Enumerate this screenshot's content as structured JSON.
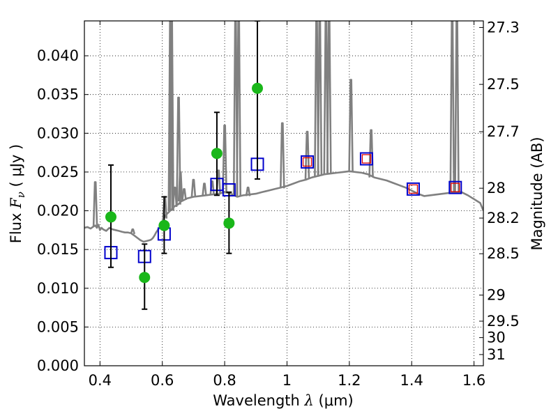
{
  "chart_data": {
    "type": "scatter",
    "xlabel": "Wavelength",
    "xlabel_symbol": "λ",
    "xlabel_unit": "(μm)",
    "ylabel": "Flux",
    "ylabel_symbol": "F",
    "ylabel_subscript": "ν",
    "ylabel_unit": "( μJy )",
    "y2label": "Magnitude (AB)",
    "xlim": [
      0.35,
      1.63
    ],
    "ylim": [
      0.0,
      0.0445
    ],
    "grid": true,
    "x_ticks": [
      0.4,
      0.6,
      0.8,
      1.0,
      1.2,
      1.4,
      1.6
    ],
    "x_tick_labels": [
      "0.4",
      "0.6",
      "0.8",
      "1",
      "1.2",
      "1.4",
      "1.6"
    ],
    "y_ticks": [
      0.0,
      0.005,
      0.01,
      0.015,
      0.02,
      0.025,
      0.03,
      0.035,
      0.04
    ],
    "y_tick_labels": [
      "0.000",
      "0.005",
      "0.010",
      "0.015",
      "0.020",
      "0.025",
      "0.030",
      "0.035",
      "0.040"
    ],
    "y2_ticks": [
      27.3,
      27.5,
      27.7,
      28,
      28.2,
      28.5,
      29,
      29.5,
      30,
      31
    ],
    "y2_tick_labels": [
      "27.3",
      "27.5",
      "27.7",
      "28",
      "28.2",
      "28.5",
      "29",
      "29.5",
      "30",
      "31"
    ],
    "colors": {
      "model": "#808080",
      "observed": "#1ab71a",
      "model_phot": "#0000cc",
      "model_phot_inner": "#dd0000",
      "errorbar": "#000000",
      "grid": "#000000"
    },
    "series": [
      {
        "name": "model spectrum",
        "kind": "line",
        "x": [
          0.35,
          0.36,
          0.37,
          0.38,
          0.385,
          0.39,
          0.395,
          0.4,
          0.405,
          0.41,
          0.42,
          0.43,
          0.44,
          0.45,
          0.46,
          0.47,
          0.48,
          0.49,
          0.5,
          0.51,
          0.52,
          0.53,
          0.54,
          0.55,
          0.56,
          0.565,
          0.57,
          0.575,
          0.58,
          0.59,
          0.6,
          0.605,
          0.61,
          0.62,
          0.63,
          0.64,
          0.65,
          0.655,
          0.66,
          0.67,
          0.68,
          0.7,
          0.72,
          0.74,
          0.76,
          0.78,
          0.8,
          0.82,
          0.84,
          0.86,
          0.88,
          0.9,
          0.92,
          0.94,
          0.96,
          0.98,
          1.0,
          1.02,
          1.04,
          1.06,
          1.08,
          1.1,
          1.12,
          1.14,
          1.16,
          1.18,
          1.2,
          1.22,
          1.24,
          1.26,
          1.28,
          1.3,
          1.32,
          1.34,
          1.36,
          1.38,
          1.4,
          1.42,
          1.44,
          1.46,
          1.48,
          1.5,
          1.52,
          1.54,
          1.56,
          1.58,
          1.6,
          1.62,
          1.63
        ],
        "y": [
          0.0178,
          0.0179,
          0.0177,
          0.018,
          0.0181,
          0.0178,
          0.0182,
          0.0175,
          0.0178,
          0.0176,
          0.0174,
          0.0178,
          0.0176,
          0.0175,
          0.0174,
          0.0173,
          0.0172,
          0.0172,
          0.0171,
          0.0168,
          0.0165,
          0.0162,
          0.016,
          0.0161,
          0.0162,
          0.0163,
          0.0165,
          0.0168,
          0.0172,
          0.0178,
          0.0186,
          0.019,
          0.0194,
          0.0198,
          0.0202,
          0.0206,
          0.0208,
          0.021,
          0.0212,
          0.0214,
          0.0216,
          0.0218,
          0.0219,
          0.022,
          0.0221,
          0.0222,
          0.0224,
          0.0222,
          0.0218,
          0.022,
          0.0221,
          0.0222,
          0.0224,
          0.0226,
          0.0228,
          0.023,
          0.0232,
          0.0235,
          0.0238,
          0.024,
          0.0243,
          0.0245,
          0.0247,
          0.0248,
          0.0249,
          0.025,
          0.0251,
          0.025,
          0.0249,
          0.0247,
          0.0243,
          0.0241,
          0.0239,
          0.0236,
          0.0233,
          0.023,
          0.0226,
          0.0222,
          0.0219,
          0.022,
          0.0221,
          0.0222,
          0.0223,
          0.0224,
          0.0224,
          0.022,
          0.0215,
          0.021,
          0.02
        ]
      },
      {
        "name": "spectrum emission lines",
        "kind": "spikes",
        "x": [
          0.385,
          0.505,
          0.608,
          0.626,
          0.63,
          0.64,
          0.652,
          0.658,
          0.67,
          0.7,
          0.735,
          0.76,
          0.78,
          0.8,
          0.835,
          0.845,
          0.875,
          0.985,
          1.065,
          1.095,
          1.105,
          1.125,
          1.135,
          1.205,
          1.27,
          1.53,
          1.545
        ],
        "base": [
          0.0179,
          0.017,
          0.019,
          0.02,
          0.02,
          0.0205,
          0.0208,
          0.0212,
          0.0214,
          0.0218,
          0.0219,
          0.022,
          0.0221,
          0.0224,
          0.022,
          0.0219,
          0.0219,
          0.0229,
          0.0241,
          0.0244,
          0.0245,
          0.0247,
          0.0248,
          0.025,
          0.0243,
          0.0222,
          0.0223
        ],
        "peak": [
          0.0237,
          0.0176,
          0.0218,
          0.0445,
          0.0445,
          0.023,
          0.0346,
          0.025,
          0.0228,
          0.024,
          0.0235,
          0.0238,
          0.0252,
          0.031,
          0.0445,
          0.0445,
          0.023,
          0.0313,
          0.0302,
          0.0445,
          0.0445,
          0.0445,
          0.0445,
          0.0369,
          0.0304,
          0.0445,
          0.0445
        ]
      },
      {
        "name": "observed photometry",
        "kind": "points",
        "marker": "circle",
        "x": [
          0.435,
          0.543,
          0.606,
          0.775,
          0.814,
          0.905
        ],
        "y": [
          0.0192,
          0.0114,
          0.0181,
          0.0274,
          0.0184,
          0.0358
        ],
        "yerr_low": [
          0.0127,
          0.0073,
          0.0145,
          0.022,
          0.0145,
          0.0241
        ],
        "yerr_high": [
          0.0259,
          0.0157,
          0.0218,
          0.0327,
          0.0224,
          0.0445
        ]
      },
      {
        "name": "model photometry",
        "kind": "points",
        "marker": "square",
        "x": [
          0.435,
          0.543,
          0.606,
          0.775,
          0.814,
          0.905,
          1.065,
          1.255,
          1.405,
          1.54
        ],
        "y": [
          0.0146,
          0.0141,
          0.017,
          0.0234,
          0.0227,
          0.026,
          0.0263,
          0.0267,
          0.0228,
          0.023
        ],
        "inner_square": [
          false,
          false,
          false,
          false,
          false,
          false,
          true,
          true,
          true,
          true
        ]
      }
    ]
  }
}
